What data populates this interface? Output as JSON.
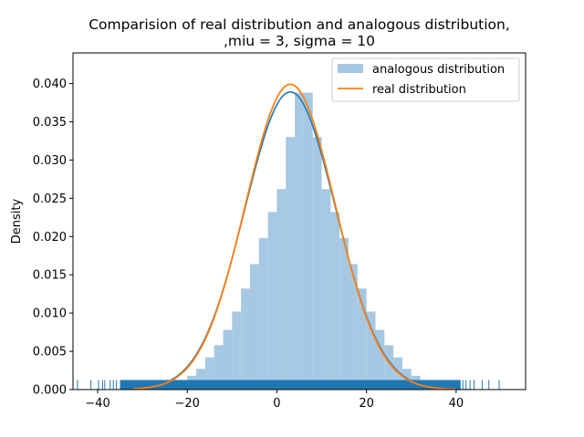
{
  "chart_data": {
    "type": "bar",
    "title_lines": [
      "Comparision of real distribution and analogous distribution,",
      ",miu = 3, sigma = 10"
    ],
    "xlabel": "",
    "ylabel": "Density",
    "xlim": [
      -45.5,
      55.5
    ],
    "ylim": [
      0,
      0.044
    ],
    "x_ticks": [
      -40,
      -20,
      0,
      20,
      40
    ],
    "x_tick_labels": [
      "−40",
      "−20",
      "0",
      "20",
      "40"
    ],
    "y_ticks": [
      0.0,
      0.005,
      0.01,
      0.015,
      0.02,
      0.025,
      0.03,
      0.035,
      0.04
    ],
    "y_tick_labels": [
      "0.000",
      "0.005",
      "0.010",
      "0.015",
      "0.020",
      "0.025",
      "0.030",
      "0.035",
      "0.040"
    ],
    "grid": false,
    "legend_position": "top-right",
    "histogram": {
      "name": "analogous distribution",
      "color": "#a6c8e2",
      "bins": [
        [
          -42,
          -37,
          0.0
        ],
        [
          -37,
          -32,
          0.0
        ],
        [
          -32,
          -27,
          0.0001
        ],
        [
          -27,
          -22,
          0.0004
        ],
        [
          -22,
          -20,
          0.0012
        ],
        [
          -20,
          -18,
          0.0018
        ],
        [
          -18,
          -16,
          0.0027
        ],
        [
          -16,
          -14,
          0.0042
        ],
        [
          -14,
          -12,
          0.0058
        ],
        [
          -12,
          -10,
          0.0078
        ],
        [
          -10,
          -8,
          0.0102
        ],
        [
          -8,
          -6,
          0.0132
        ],
        [
          -6,
          -4,
          0.0164
        ],
        [
          -4,
          -2,
          0.0198
        ],
        [
          -2,
          0,
          0.0232
        ],
        [
          0,
          2,
          0.0262
        ],
        [
          2,
          4,
          0.033
        ],
        [
          4,
          6,
          0.0388
        ],
        [
          6,
          8,
          0.0388
        ],
        [
          8,
          10,
          0.033
        ],
        [
          10,
          12,
          0.0262
        ],
        [
          12,
          14,
          0.0232
        ],
        [
          14,
          16,
          0.0198
        ],
        [
          16,
          18,
          0.0164
        ],
        [
          18,
          20,
          0.0132
        ],
        [
          20,
          22,
          0.0102
        ],
        [
          22,
          24,
          0.0078
        ],
        [
          24,
          26,
          0.0058
        ],
        [
          26,
          28,
          0.0042
        ],
        [
          28,
          30,
          0.0027
        ],
        [
          30,
          32,
          0.0018
        ],
        [
          32,
          34,
          0.0012
        ],
        [
          34,
          38,
          0.0004
        ],
        [
          38,
          43,
          0.0001
        ],
        [
          43,
          50,
          0.0
        ]
      ]
    },
    "kde": {
      "color": "#1f77b4",
      "mean": 3,
      "sigma": 10.15,
      "peak": 0.0389
    },
    "real_distribution": {
      "name": "real distribution",
      "color": "#ff7f0e",
      "mean": 3,
      "sigma": 10
    },
    "rug": {
      "color": "#1f77b4",
      "height": 0.00125,
      "dense_range": [
        -35,
        41
      ],
      "sparse_points": [
        -44.5,
        -41.5,
        -39.8,
        -38.9,
        -38.4,
        -37.2,
        -36.5,
        -35.8,
        41.5,
        42.2,
        43.1,
        44.0,
        45.8,
        47.3,
        49.6
      ]
    }
  }
}
